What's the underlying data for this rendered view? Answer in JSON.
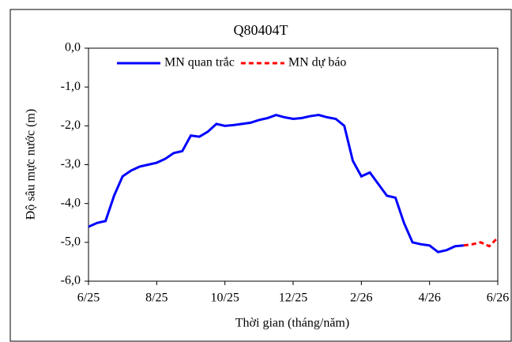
{
  "chart_data": {
    "type": "line",
    "title": "Q80404T",
    "x_label": "Thời gian (tháng/năm)",
    "y_label": "Độ sâu mực nước (m)",
    "categories": [
      "6/25",
      null,
      null,
      null,
      null,
      null,
      null,
      null,
      "8/25",
      null,
      null,
      null,
      null,
      null,
      null,
      null,
      "10/25",
      null,
      null,
      null,
      null,
      null,
      null,
      null,
      "12/25",
      null,
      null,
      null,
      null,
      null,
      null,
      null,
      "2/26",
      null,
      null,
      null,
      null,
      null,
      null,
      null,
      "4/26",
      null,
      null,
      null,
      null,
      null,
      null,
      null,
      "6/26"
    ],
    "series": [
      {
        "name": "MN quan trắc",
        "color": "#0000ff",
        "dash": false,
        "values": [
          -4.6,
          -4.5,
          -4.45,
          -3.8,
          -3.3,
          -3.15,
          -3.05,
          -3.0,
          -2.95,
          -2.85,
          -2.7,
          -2.65,
          -2.25,
          -2.28,
          -2.15,
          -1.95,
          -2.0,
          -1.98,
          -1.95,
          -1.92,
          -1.85,
          -1.8,
          -1.72,
          -1.78,
          -1.82,
          -1.8,
          -1.75,
          -1.72,
          -1.78,
          -1.82,
          -2.0,
          -2.9,
          -3.3,
          -3.2,
          -3.5,
          -3.8,
          -3.85,
          -4.5,
          -5.0,
          -5.05,
          -5.08,
          -5.25,
          -5.2,
          -5.1,
          -5.08,
          null,
          null,
          null,
          null
        ]
      },
      {
        "name": "MN dự báo",
        "color": "#ff0000",
        "dash": true,
        "values": [
          null,
          null,
          null,
          null,
          null,
          null,
          null,
          null,
          null,
          null,
          null,
          null,
          null,
          null,
          null,
          null,
          null,
          null,
          null,
          null,
          null,
          null,
          null,
          null,
          null,
          null,
          null,
          null,
          null,
          null,
          null,
          null,
          null,
          null,
          null,
          null,
          null,
          null,
          null,
          null,
          null,
          null,
          null,
          null,
          -5.08,
          -5.05,
          -5.0,
          -5.1,
          -4.88
        ]
      }
    ],
    "ylim": [
      -6,
      0
    ],
    "yticks": [
      {
        "value": -6,
        "label": "-6,0"
      },
      {
        "value": -5,
        "label": "-5,0"
      },
      {
        "value": -4,
        "label": "-4,0"
      },
      {
        "value": -3,
        "label": "-3,0"
      },
      {
        "value": -2,
        "label": "-2,0"
      },
      {
        "value": -1,
        "label": "-1,0"
      },
      {
        "value": 0,
        "label": "0,0"
      }
    ],
    "legend": "top"
  }
}
